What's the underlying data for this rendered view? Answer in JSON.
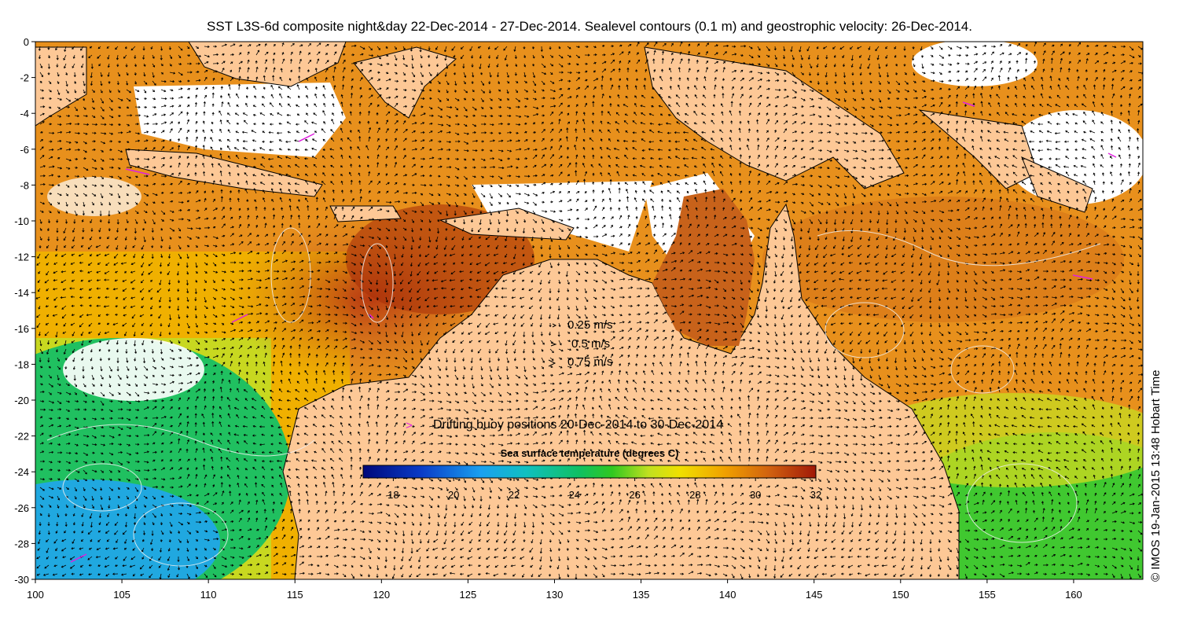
{
  "title": "SST L3S-6d composite night&day 22-Dec-2014 - 27-Dec-2014. Sealevel contours (0.1 m) and geostrophic velocity: 26-Dec-2014.",
  "axes": {
    "x_ticks": [
      100,
      105,
      110,
      115,
      120,
      125,
      130,
      135,
      140,
      145,
      150,
      155,
      160
    ],
    "y_ticks": [
      0,
      -2,
      -4,
      -6,
      -8,
      -10,
      -12,
      -14,
      -16,
      -18,
      -20,
      -22,
      -24,
      -26,
      -28,
      -30
    ],
    "x_range": [
      100,
      164
    ],
    "y_range": [
      -30,
      0
    ]
  },
  "velocity_legend": [
    {
      "label": "0.25 m/s",
      "speed": 0.25
    },
    {
      "label": "0.5 m/s",
      "speed": 0.5
    },
    {
      "label": "0.75 m/s",
      "speed": 0.75
    }
  ],
  "buoy_legend": {
    "symbol": ">",
    "label": "Drifting buoy positions 20-Dec-2014 to 30-Dec-2014",
    "color": "#e020e0"
  },
  "colorbar": {
    "title": "Sea surface temperature (degrees C)",
    "range": [
      17,
      32
    ],
    "ticks": [
      18,
      20,
      22,
      24,
      26,
      28,
      30,
      32
    ]
  },
  "copyright": "© IMOS 19-Jan-2015 13:48 Hobart Time",
  "colors": {
    "land": "#fdc896",
    "no_data": "#ffffff",
    "contour": "#f0f0f0",
    "buoy": "#e020e0"
  }
}
